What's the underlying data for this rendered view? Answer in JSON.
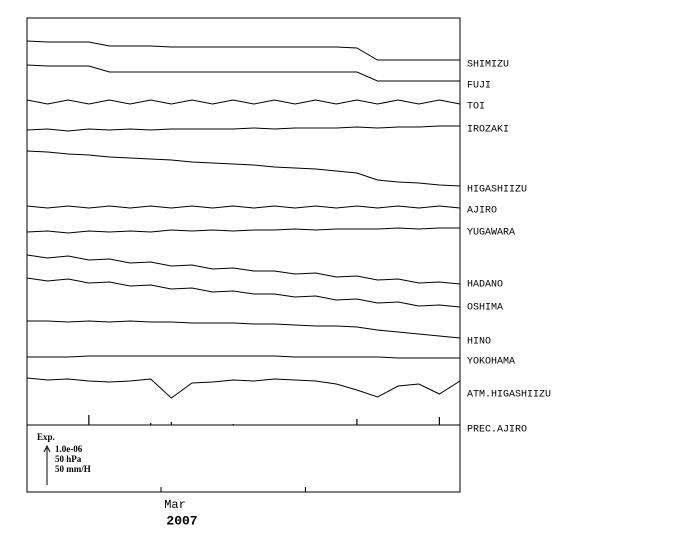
{
  "chart_data": {
    "type": "line",
    "x_label": "2007",
    "x": [
      0,
      2,
      4,
      6,
      8,
      10,
      12,
      14,
      16,
      18,
      20,
      22,
      24,
      26,
      28,
      30,
      32,
      34,
      36,
      38,
      40,
      42
    ],
    "xlim": [
      0,
      42
    ],
    "xticks": [
      {
        "value": 13,
        "label": "Mar"
      },
      {
        "value": 27,
        "label": null
      }
    ],
    "scale_legend": [
      "Exp.",
      "1.0e-06",
      "50 hPa",
      "50 mm/H"
    ],
    "series": [
      {
        "name": "SHIMIZU",
        "color": "#000000",
        "values": [
          0,
          -1,
          -1,
          -1,
          -5,
          -5,
          -5,
          -6,
          -6,
          -6,
          -6,
          -6,
          -6,
          -6,
          -6,
          -6,
          -7,
          -19,
          -19,
          -19,
          -19,
          -19
        ]
      },
      {
        "name": "FUJI",
        "color": "#000000",
        "values": [
          0,
          -1,
          -1,
          -1,
          -7,
          -7,
          -7,
          -7,
          -7,
          -7,
          -7,
          -7,
          -7,
          -7,
          -7,
          -7,
          -7,
          -16,
          -16,
          -16,
          -16,
          -16
        ]
      },
      {
        "name": "TOI",
        "color": "#000000",
        "values": [
          2,
          -2,
          2,
          -2,
          2,
          -2,
          2,
          -2,
          2,
          -2,
          2,
          -2,
          2,
          -2,
          2,
          -2,
          2,
          -2,
          2,
          -2,
          2,
          -2
        ]
      },
      {
        "name": "IROZAKI",
        "color": "#000000",
        "values": [
          0,
          1,
          -1,
          1,
          0,
          1,
          0,
          1,
          1,
          1,
          1,
          2,
          1,
          2,
          2,
          2,
          3,
          2,
          3,
          3,
          4,
          4
        ]
      },
      {
        "name": "HIGASHIIZU",
        "color": "#000000",
        "values": [
          0,
          -1,
          -3,
          -4,
          -6,
          -7,
          -8,
          -9,
          -11,
          -12,
          -13,
          -14,
          -16,
          -17,
          -18,
          -20,
          -22,
          -29,
          -31,
          -32,
          -34,
          -35
        ]
      },
      {
        "name": "AJIRO",
        "color": "#000000",
        "values": [
          1,
          -1,
          1,
          -1,
          1,
          -1,
          1,
          -1,
          1,
          -1,
          1,
          -1,
          1,
          -1,
          1,
          -1,
          1,
          -1,
          1,
          -1,
          1,
          -1
        ]
      },
      {
        "name": "YUGAWARA",
        "color": "#000000",
        "values": [
          0,
          1,
          -1,
          1,
          0,
          1,
          0,
          2,
          1,
          2,
          1,
          2,
          2,
          3,
          2,
          3,
          3,
          3,
          4,
          3,
          4,
          4
        ]
      },
      {
        "name": "HADANO",
        "color": "#000000",
        "values": [
          0,
          -3,
          -1,
          -5,
          -4,
          -8,
          -7,
          -11,
          -10,
          -14,
          -13,
          -16,
          -16,
          -19,
          -18,
          -22,
          -21,
          -25,
          -24,
          -28,
          -27,
          -29
        ]
      },
      {
        "name": "OSHIMA",
        "color": "#000000",
        "values": [
          0,
          -3,
          -1,
          -5,
          -4,
          -8,
          -7,
          -11,
          -10,
          -14,
          -13,
          -16,
          -16,
          -19,
          -18,
          -22,
          -21,
          -25,
          -24,
          -28,
          -27,
          -29
        ]
      },
      {
        "name": "HINO",
        "color": "#000000",
        "values": [
          0,
          0,
          -1,
          0,
          -1,
          0,
          -1,
          -1,
          -2,
          -2,
          -2,
          -3,
          -3,
          -4,
          -5,
          -5,
          -6,
          -9,
          -11,
          -13,
          -15,
          -17
        ]
      },
      {
        "name": "YOKOHAMA",
        "color": "#000000",
        "values": [
          0,
          0,
          0,
          1,
          1,
          1,
          1,
          1,
          1,
          1,
          1,
          1,
          1,
          0,
          0,
          0,
          0,
          0,
          -1,
          -1,
          -1,
          -1
        ]
      },
      {
        "name": "ATM.HIGASHIIZU",
        "color": "#000000",
        "values": [
          0,
          -2,
          -1,
          -3,
          -4,
          -3,
          -1,
          -20,
          -5,
          -4,
          -2,
          -3,
          -1,
          -2,
          -3,
          -6,
          -12,
          -19,
          -8,
          -6,
          -16,
          -3
        ]
      },
      {
        "name": "PREC.AJIRO",
        "color": "#000000",
        "style": "stem",
        "values": [
          0,
          0,
          0,
          10,
          0,
          0,
          2,
          3,
          0,
          0,
          1,
          0,
          0,
          0,
          0,
          0,
          6,
          0,
          0,
          0,
          8,
          0
        ]
      }
    ]
  }
}
